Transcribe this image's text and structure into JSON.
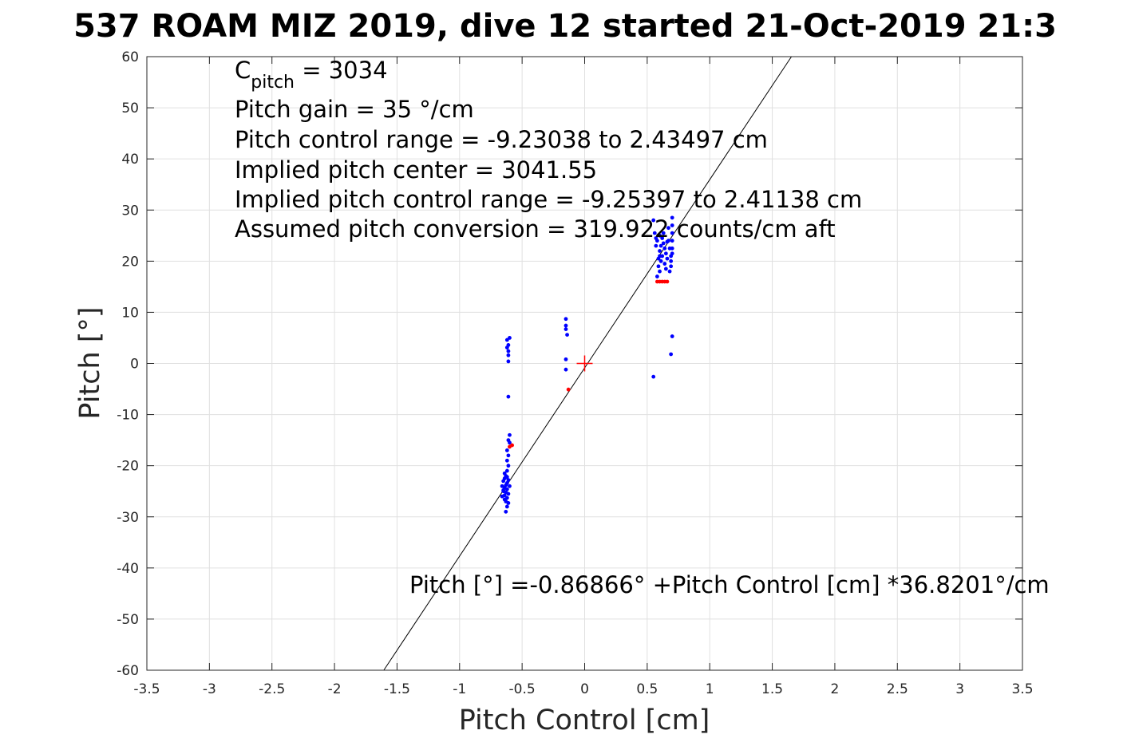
{
  "chart_data": {
    "type": "scatter",
    "title": "537 ROAM MIZ 2019, dive 12 started 21-Oct-2019 21:3",
    "xlabel": "Pitch Control [cm]",
    "ylabel": "Pitch [°]",
    "xlim": [
      -3.5,
      3.5
    ],
    "ylim": [
      -60,
      60
    ],
    "x_ticks": [
      -3.5,
      -3,
      -2.5,
      -2,
      -1.5,
      -1,
      -0.5,
      0,
      0.5,
      1,
      1.5,
      2,
      2.5,
      3,
      3.5
    ],
    "x_tick_labels": [
      "-3.5",
      "-3",
      "-2.5",
      "-2",
      "-1.5",
      "-1",
      "-0.5",
      "0",
      "0.5",
      "1",
      "1.5",
      "2",
      "2.5",
      "3",
      "3.5"
    ],
    "y_ticks": [
      -60,
      -50,
      -40,
      -30,
      -20,
      -10,
      0,
      10,
      20,
      30,
      40,
      50,
      60
    ],
    "y_tick_labels": [
      "-60",
      "-50",
      "-40",
      "-30",
      "-20",
      "-10",
      "0",
      "10",
      "20",
      "30",
      "40",
      "50",
      "60"
    ],
    "grid": true,
    "annotations": {
      "c_pitch_symbol": "C",
      "c_pitch_subscript": "pitch",
      "c_pitch_value": " = 3034",
      "lines": [
        "Pitch gain = 35 °/cm",
        "Pitch control range = -9.23038 to 2.43497 cm",
        "Implied pitch center = 3041.55",
        "Implied pitch control range = -9.25397 to 2.41138 cm",
        "Assumed pitch conversion = 319.922 counts/cm aft"
      ],
      "fit_equation": "Pitch [°] =-0.86866° +Pitch Control [cm] *36.8201°/cm"
    },
    "fit_line": {
      "intercept": -0.86866,
      "slope": 36.8201
    },
    "center_marker": {
      "x": 0,
      "y": 0
    },
    "series": [
      {
        "color": "#0000ff",
        "points": [
          [
            -0.6,
            5.0
          ],
          [
            -0.62,
            4.6
          ],
          [
            -0.61,
            3.6
          ],
          [
            -0.62,
            3.1
          ],
          [
            -0.61,
            2.4
          ],
          [
            -0.61,
            1.6
          ],
          [
            -0.61,
            0.4
          ],
          [
            -0.61,
            -6.5
          ],
          [
            -0.6,
            -14.0
          ],
          [
            -0.61,
            -15.0
          ],
          [
            -0.6,
            -15.5
          ],
          [
            -0.62,
            -17.0
          ],
          [
            -0.61,
            -18.0
          ],
          [
            -0.62,
            -19.0
          ],
          [
            -0.61,
            -20.0
          ],
          [
            -0.62,
            -21.0
          ],
          [
            -0.63,
            -22.0
          ],
          [
            -0.64,
            -22.5
          ],
          [
            -0.61,
            -22.8
          ],
          [
            -0.65,
            -23.0
          ],
          [
            -0.62,
            -23.4
          ],
          [
            -0.63,
            -23.8
          ],
          [
            -0.66,
            -24.0
          ],
          [
            -0.64,
            -24.3
          ],
          [
            -0.62,
            -24.6
          ],
          [
            -0.65,
            -25.0
          ],
          [
            -0.63,
            -25.2
          ],
          [
            -0.61,
            -25.5
          ],
          [
            -0.64,
            -25.8
          ],
          [
            -0.66,
            -26.0
          ],
          [
            -0.62,
            -26.3
          ],
          [
            -0.64,
            -26.6
          ],
          [
            -0.63,
            -27.0
          ],
          [
            -0.61,
            -27.3
          ],
          [
            -0.62,
            -28.0
          ],
          [
            -0.63,
            -29.0
          ],
          [
            -0.65,
            -24.8
          ],
          [
            -0.62,
            -22.2
          ],
          [
            -0.6,
            -24.0
          ],
          [
            -0.64,
            -21.5
          ],
          [
            -0.15,
            8.7
          ],
          [
            -0.15,
            7.4
          ],
          [
            -0.15,
            6.7
          ],
          [
            -0.14,
            5.6
          ],
          [
            -0.15,
            0.8
          ],
          [
            -0.15,
            -1.2
          ],
          [
            0.55,
            28.0
          ],
          [
            0.56,
            25.5
          ],
          [
            0.57,
            24.5
          ],
          [
            0.58,
            24.0
          ],
          [
            0.57,
            23.0
          ],
          [
            0.6,
            22.0
          ],
          [
            0.6,
            21.0
          ],
          [
            0.61,
            20.0
          ],
          [
            0.59,
            19.0
          ],
          [
            0.6,
            18.0
          ],
          [
            0.62,
            24.5
          ],
          [
            0.63,
            23.5
          ],
          [
            0.64,
            22.5
          ],
          [
            0.65,
            21.5
          ],
          [
            0.66,
            20.5
          ],
          [
            0.64,
            19.5
          ],
          [
            0.63,
            25.5
          ],
          [
            0.67,
            24.0
          ],
          [
            0.68,
            22.5
          ],
          [
            0.69,
            21.0
          ],
          [
            0.69,
            20.0
          ],
          [
            0.69,
            19.0
          ],
          [
            0.7,
            28.5
          ],
          [
            0.7,
            27.0
          ],
          [
            0.7,
            25.5
          ],
          [
            0.7,
            24.0
          ],
          [
            0.7,
            22.5
          ],
          [
            0.7,
            21.5
          ],
          [
            0.62,
            21.0
          ],
          [
            0.61,
            23.0
          ],
          [
            0.66,
            23.8
          ],
          [
            0.65,
            18.5
          ],
          [
            0.58,
            17.0
          ],
          [
            0.6,
            25.0
          ],
          [
            0.59,
            20.5
          ],
          [
            0.68,
            18.0
          ],
          [
            0.67,
            26.5
          ],
          [
            0.7,
            5.3
          ],
          [
            0.69,
            1.8
          ],
          [
            0.55,
            -2.6
          ]
        ]
      },
      {
        "color": "#ff0000",
        "points": [
          [
            -0.58,
            -16.0
          ],
          [
            -0.6,
            -16.3
          ],
          [
            -0.13,
            -5.1
          ],
          [
            0.58,
            16.0
          ],
          [
            0.6,
            16.0
          ],
          [
            0.62,
            16.0
          ],
          [
            0.64,
            16.0
          ],
          [
            0.66,
            16.0
          ]
        ]
      }
    ]
  }
}
